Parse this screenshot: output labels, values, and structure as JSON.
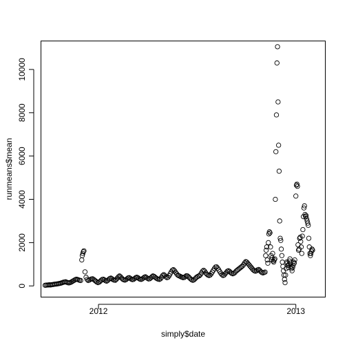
{
  "chart_data": {
    "type": "scatter",
    "xlabel": "simply$date",
    "ylabel": "runmeans$mean",
    "x_domain": [
      "2011-09-17",
      "2013-02-24"
    ],
    "ylim": [
      -500,
      11300
    ],
    "x_ticks": [
      {
        "label": "2012",
        "date": "2012-01-01"
      },
      {
        "label": "2013",
        "date": "2013-01-01"
      }
    ],
    "y_ticks": [
      0,
      2000,
      4000,
      6000,
      8000,
      10000
    ],
    "marker": "open-circle",
    "point_color": "#000000",
    "background": "#ffffff",
    "grid": false,
    "legend": "none",
    "points": [
      [
        "2011-09-24",
        30
      ],
      [
        "2011-09-26",
        35
      ],
      [
        "2011-09-28",
        40
      ],
      [
        "2011-09-30",
        45
      ],
      [
        "2011-10-02",
        50
      ],
      [
        "2011-10-04",
        45
      ],
      [
        "2011-10-06",
        55
      ],
      [
        "2011-10-08",
        60
      ],
      [
        "2011-10-10",
        70
      ],
      [
        "2011-10-12",
        80
      ],
      [
        "2011-10-14",
        85
      ],
      [
        "2011-10-16",
        90
      ],
      [
        "2011-10-18",
        100
      ],
      [
        "2011-10-20",
        110
      ],
      [
        "2011-10-22",
        120
      ],
      [
        "2011-10-24",
        135
      ],
      [
        "2011-10-26",
        150
      ],
      [
        "2011-10-28",
        170
      ],
      [
        "2011-10-30",
        180
      ],
      [
        "2011-11-01",
        190
      ],
      [
        "2011-11-03",
        170
      ],
      [
        "2011-11-05",
        150
      ],
      [
        "2011-11-07",
        140
      ],
      [
        "2011-11-09",
        150
      ],
      [
        "2011-11-11",
        170
      ],
      [
        "2011-11-13",
        200
      ],
      [
        "2011-11-15",
        230
      ],
      [
        "2011-11-17",
        260
      ],
      [
        "2011-11-19",
        290
      ],
      [
        "2011-11-21",
        310
      ],
      [
        "2011-11-23",
        300
      ],
      [
        "2011-11-25",
        280
      ],
      [
        "2011-11-27",
        260
      ],
      [
        "2011-11-29",
        250
      ],
      [
        "2011-12-01",
        1200
      ],
      [
        "2011-12-02",
        1400
      ],
      [
        "2011-12-03",
        1500
      ],
      [
        "2011-12-04",
        1580
      ],
      [
        "2011-12-05",
        1620
      ],
      [
        "2011-12-07",
        650
      ],
      [
        "2011-12-09",
        400
      ],
      [
        "2011-12-11",
        300
      ],
      [
        "2011-12-13",
        250
      ],
      [
        "2011-12-15",
        270
      ],
      [
        "2011-12-17",
        300
      ],
      [
        "2011-12-19",
        320
      ],
      [
        "2011-12-21",
        330
      ],
      [
        "2011-12-23",
        300
      ],
      [
        "2011-12-25",
        260
      ],
      [
        "2011-12-27",
        220
      ],
      [
        "2011-12-29",
        180
      ],
      [
        "2011-12-31",
        150
      ],
      [
        "2012-01-02",
        170
      ],
      [
        "2012-01-04",
        210
      ],
      [
        "2012-01-06",
        260
      ],
      [
        "2012-01-08",
        300
      ],
      [
        "2012-01-10",
        310
      ],
      [
        "2012-01-12",
        280
      ],
      [
        "2012-01-14",
        240
      ],
      [
        "2012-01-16",
        220
      ],
      [
        "2012-01-18",
        250
      ],
      [
        "2012-01-20",
        300
      ],
      [
        "2012-01-22",
        340
      ],
      [
        "2012-01-24",
        360
      ],
      [
        "2012-01-26",
        330
      ],
      [
        "2012-01-28",
        290
      ],
      [
        "2012-01-30",
        270
      ],
      [
        "2012-02-01",
        260
      ],
      [
        "2012-02-03",
        300
      ],
      [
        "2012-02-05",
        360
      ],
      [
        "2012-02-07",
        420
      ],
      [
        "2012-02-09",
        460
      ],
      [
        "2012-02-11",
        420
      ],
      [
        "2012-02-13",
        360
      ],
      [
        "2012-02-15",
        310
      ],
      [
        "2012-02-17",
        280
      ],
      [
        "2012-02-19",
        270
      ],
      [
        "2012-02-21",
        290
      ],
      [
        "2012-02-23",
        330
      ],
      [
        "2012-02-25",
        370
      ],
      [
        "2012-02-27",
        380
      ],
      [
        "2012-02-29",
        350
      ],
      [
        "2012-03-02",
        310
      ],
      [
        "2012-03-04",
        290
      ],
      [
        "2012-03-06",
        300
      ],
      [
        "2012-03-08",
        340
      ],
      [
        "2012-03-10",
        380
      ],
      [
        "2012-03-12",
        400
      ],
      [
        "2012-03-14",
        380
      ],
      [
        "2012-03-16",
        340
      ],
      [
        "2012-03-18",
        310
      ],
      [
        "2012-03-20",
        300
      ],
      [
        "2012-03-22",
        320
      ],
      [
        "2012-03-24",
        360
      ],
      [
        "2012-03-26",
        400
      ],
      [
        "2012-03-28",
        420
      ],
      [
        "2012-03-30",
        390
      ],
      [
        "2012-04-01",
        350
      ],
      [
        "2012-04-03",
        320
      ],
      [
        "2012-04-05",
        330
      ],
      [
        "2012-04-07",
        370
      ],
      [
        "2012-04-09",
        420
      ],
      [
        "2012-04-11",
        460
      ],
      [
        "2012-04-13",
        440
      ],
      [
        "2012-04-15",
        400
      ],
      [
        "2012-04-17",
        360
      ],
      [
        "2012-04-19",
        330
      ],
      [
        "2012-04-21",
        310
      ],
      [
        "2012-04-23",
        300
      ],
      [
        "2012-04-25",
        330
      ],
      [
        "2012-04-27",
        400
      ],
      [
        "2012-04-29",
        480
      ],
      [
        "2012-05-01",
        520
      ],
      [
        "2012-05-03",
        480
      ],
      [
        "2012-05-05",
        420
      ],
      [
        "2012-05-07",
        380
      ],
      [
        "2012-05-09",
        400
      ],
      [
        "2012-05-11",
        470
      ],
      [
        "2012-05-13",
        560
      ],
      [
        "2012-05-15",
        650
      ],
      [
        "2012-05-17",
        720
      ],
      [
        "2012-05-19",
        750
      ],
      [
        "2012-05-21",
        700
      ],
      [
        "2012-05-23",
        630
      ],
      [
        "2012-05-25",
        560
      ],
      [
        "2012-05-27",
        500
      ],
      [
        "2012-05-29",
        470
      ],
      [
        "2012-05-31",
        450
      ],
      [
        "2012-06-02",
        420
      ],
      [
        "2012-06-04",
        400
      ],
      [
        "2012-06-06",
        380
      ],
      [
        "2012-06-08",
        390
      ],
      [
        "2012-06-10",
        430
      ],
      [
        "2012-06-12",
        470
      ],
      [
        "2012-06-14",
        460
      ],
      [
        "2012-06-16",
        420
      ],
      [
        "2012-06-18",
        370
      ],
      [
        "2012-06-20",
        320
      ],
      [
        "2012-06-22",
        280
      ],
      [
        "2012-06-24",
        260
      ],
      [
        "2012-06-26",
        280
      ],
      [
        "2012-06-28",
        330
      ],
      [
        "2012-06-30",
        380
      ],
      [
        "2012-07-02",
        420
      ],
      [
        "2012-07-04",
        450
      ],
      [
        "2012-07-06",
        470
      ],
      [
        "2012-07-08",
        520
      ],
      [
        "2012-07-10",
        600
      ],
      [
        "2012-07-12",
        680
      ],
      [
        "2012-07-14",
        720
      ],
      [
        "2012-07-16",
        680
      ],
      [
        "2012-07-18",
        600
      ],
      [
        "2012-07-20",
        540
      ],
      [
        "2012-07-22",
        500
      ],
      [
        "2012-07-24",
        480
      ],
      [
        "2012-07-26",
        500
      ],
      [
        "2012-07-28",
        560
      ],
      [
        "2012-07-30",
        640
      ],
      [
        "2012-08-01",
        720
      ],
      [
        "2012-08-03",
        800
      ],
      [
        "2012-08-05",
        870
      ],
      [
        "2012-08-07",
        880
      ],
      [
        "2012-08-09",
        820
      ],
      [
        "2012-08-11",
        740
      ],
      [
        "2012-08-13",
        660
      ],
      [
        "2012-08-15",
        580
      ],
      [
        "2012-08-17",
        520
      ],
      [
        "2012-08-19",
        480
      ],
      [
        "2012-08-21",
        500
      ],
      [
        "2012-08-23",
        560
      ],
      [
        "2012-08-25",
        620
      ],
      [
        "2012-08-27",
        680
      ],
      [
        "2012-08-29",
        700
      ],
      [
        "2012-08-31",
        670
      ],
      [
        "2012-09-02",
        620
      ],
      [
        "2012-09-04",
        580
      ],
      [
        "2012-09-06",
        560
      ],
      [
        "2012-09-08",
        580
      ],
      [
        "2012-09-10",
        620
      ],
      [
        "2012-09-12",
        680
      ],
      [
        "2012-09-14",
        720
      ],
      [
        "2012-09-16",
        760
      ],
      [
        "2012-09-18",
        800
      ],
      [
        "2012-09-20",
        840
      ],
      [
        "2012-09-22",
        880
      ],
      [
        "2012-09-24",
        920
      ],
      [
        "2012-09-26",
        980
      ],
      [
        "2012-09-28",
        1060
      ],
      [
        "2012-09-30",
        1120
      ],
      [
        "2012-10-02",
        1100
      ],
      [
        "2012-10-04",
        1040
      ],
      [
        "2012-10-06",
        980
      ],
      [
        "2012-10-08",
        920
      ],
      [
        "2012-10-10",
        860
      ],
      [
        "2012-10-12",
        800
      ],
      [
        "2012-10-14",
        740
      ],
      [
        "2012-10-16",
        700
      ],
      [
        "2012-10-18",
        680
      ],
      [
        "2012-10-20",
        700
      ],
      [
        "2012-10-22",
        740
      ],
      [
        "2012-10-24",
        760
      ],
      [
        "2012-10-26",
        720
      ],
      [
        "2012-10-28",
        660
      ],
      [
        "2012-10-30",
        620
      ],
      [
        "2012-11-01",
        600
      ],
      [
        "2012-11-03",
        620
      ],
      [
        "2012-11-05",
        640
      ],
      [
        "2012-11-06",
        1400
      ],
      [
        "2012-11-07",
        1650
      ],
      [
        "2012-11-08",
        1800
      ],
      [
        "2012-11-09",
        1200
      ],
      [
        "2012-11-10",
        1050
      ],
      [
        "2012-11-11",
        2000
      ],
      [
        "2012-11-12",
        2400
      ],
      [
        "2012-11-13",
        2500
      ],
      [
        "2012-11-14",
        2450
      ],
      [
        "2012-11-15",
        1800
      ],
      [
        "2012-11-16",
        1400
      ],
      [
        "2012-11-17",
        1200
      ],
      [
        "2012-11-18",
        1300
      ],
      [
        "2012-11-19",
        1500
      ],
      [
        "2012-11-20",
        1150
      ],
      [
        "2012-11-21",
        1100
      ],
      [
        "2012-11-22",
        1200
      ],
      [
        "2012-11-23",
        1250
      ],
      [
        "2012-11-24",
        4000
      ],
      [
        "2012-11-25",
        6200
      ],
      [
        "2012-11-26",
        7900
      ],
      [
        "2012-11-27",
        10300
      ],
      [
        "2012-11-28",
        11050
      ],
      [
        "2012-11-29",
        8500
      ],
      [
        "2012-11-30",
        6500
      ],
      [
        "2012-12-01",
        5300
      ],
      [
        "2012-12-02",
        3000
      ],
      [
        "2012-12-03",
        2200
      ],
      [
        "2012-12-04",
        2100
      ],
      [
        "2012-12-05",
        1700
      ],
      [
        "2012-12-06",
        1400
      ],
      [
        "2012-12-07",
        1100
      ],
      [
        "2012-12-08",
        900
      ],
      [
        "2012-12-09",
        700
      ],
      [
        "2012-12-10",
        500
      ],
      [
        "2012-12-11",
        300
      ],
      [
        "2012-12-12",
        150
      ],
      [
        "2012-12-13",
        500
      ],
      [
        "2012-12-14",
        800
      ],
      [
        "2012-12-15",
        1100
      ],
      [
        "2012-12-16",
        1050
      ],
      [
        "2012-12-17",
        950
      ],
      [
        "2012-12-18",
        850
      ],
      [
        "2012-12-19",
        1000
      ],
      [
        "2012-12-20",
        1150
      ],
      [
        "2012-12-21",
        1250
      ],
      [
        "2012-12-22",
        1050
      ],
      [
        "2012-12-23",
        900
      ],
      [
        "2012-12-24",
        800
      ],
      [
        "2012-12-25",
        700
      ],
      [
        "2012-12-26",
        850
      ],
      [
        "2012-12-27",
        950
      ],
      [
        "2012-12-28",
        1100
      ],
      [
        "2012-12-29",
        1050
      ],
      [
        "2012-12-30",
        1200
      ],
      [
        "2013-01-01",
        4150
      ],
      [
        "2013-01-02",
        4650
      ],
      [
        "2013-01-03",
        4700
      ],
      [
        "2013-01-04",
        4600
      ],
      [
        "2013-01-05",
        1900
      ],
      [
        "2013-01-06",
        1650
      ],
      [
        "2013-01-07",
        1700
      ],
      [
        "2013-01-08",
        2200
      ],
      [
        "2013-01-09",
        2250
      ],
      [
        "2013-01-10",
        2050
      ],
      [
        "2013-01-11",
        1800
      ],
      [
        "2013-01-12",
        1500
      ],
      [
        "2013-01-13",
        2300
      ],
      [
        "2013-01-14",
        2600
      ],
      [
        "2013-01-15",
        3200
      ],
      [
        "2013-01-16",
        3600
      ],
      [
        "2013-01-17",
        3700
      ],
      [
        "2013-01-18",
        3300
      ],
      [
        "2013-01-19",
        3200
      ],
      [
        "2013-01-20",
        3250
      ],
      [
        "2013-01-21",
        3100
      ],
      [
        "2013-01-22",
        3000
      ],
      [
        "2013-01-23",
        2900
      ],
      [
        "2013-01-24",
        2800
      ],
      [
        "2013-01-25",
        2200
      ],
      [
        "2013-01-26",
        1800
      ],
      [
        "2013-01-27",
        1500
      ],
      [
        "2013-01-28",
        1400
      ],
      [
        "2013-01-29",
        1500
      ],
      [
        "2013-01-30",
        1600
      ],
      [
        "2013-01-31",
        1700
      ],
      [
        "2013-02-01",
        1650
      ]
    ]
  }
}
